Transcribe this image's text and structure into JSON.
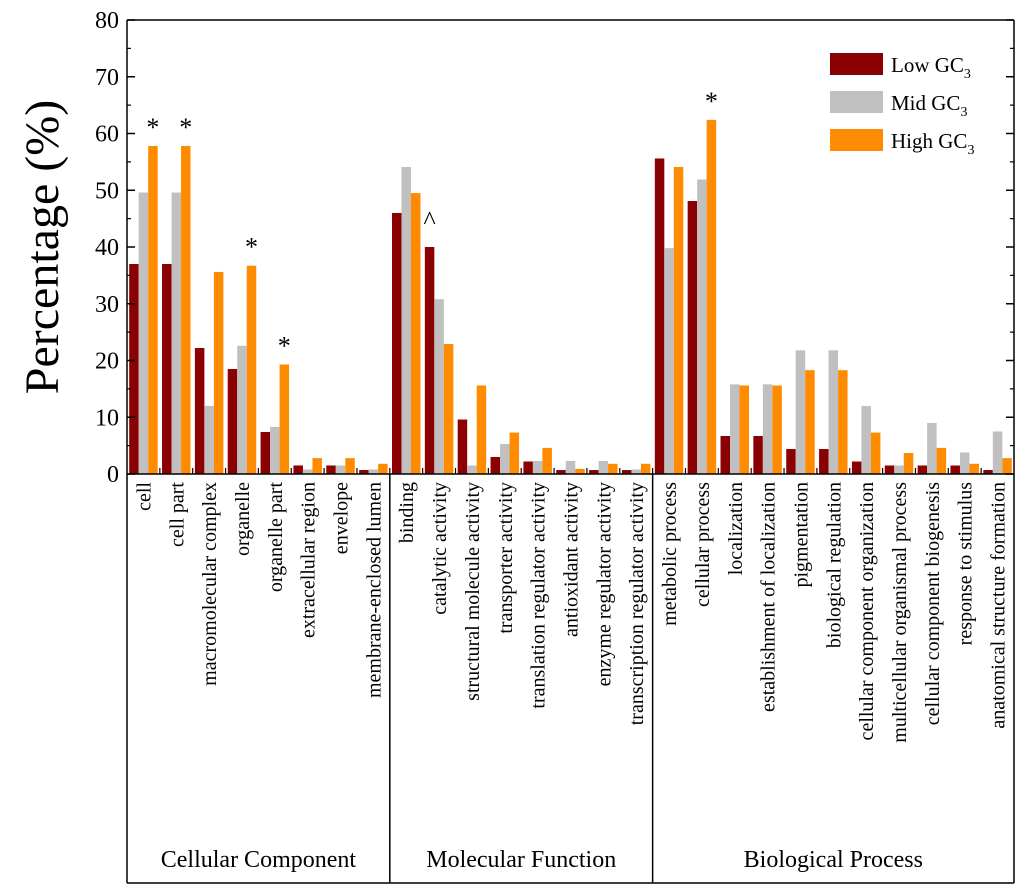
{
  "chart_data": {
    "type": "bar",
    "ylabel": "Percentage (%)",
    "ylim": [
      0,
      80
    ],
    "yticks": [
      0,
      10,
      20,
      30,
      40,
      50,
      60,
      70,
      80
    ],
    "categories": [
      "cell",
      "cell part",
      "macromolecular complex",
      "organelle",
      "organelle part",
      "extracellular region",
      "envelope",
      "membrane-enclosed lumen",
      "binding",
      "catalytic activity",
      "structural molecule activity",
      "transporter activity",
      "translation regulator activity",
      "antioxidant activity",
      "enzyme regulator activity",
      "transcription regulator activity",
      "metabolic process",
      "cellular process",
      "localization",
      "establishment of localization",
      "pigmentation",
      "biological regulation",
      "cellular component organization",
      "multicellular organismal process",
      "cellular component biogenesis",
      "response to stimulus",
      "anatomical structure formation"
    ],
    "groups": [
      {
        "label": "Cellular Component",
        "start": 0,
        "end": 7
      },
      {
        "label": "Molecular Function",
        "start": 8,
        "end": 15
      },
      {
        "label": "Biological Process",
        "start": 16,
        "end": 26
      }
    ],
    "series": [
      {
        "name": "Low GC",
        "subscript": "3",
        "color": "#8b0000",
        "values": [
          37,
          37,
          22.2,
          18.5,
          7.4,
          1.5,
          1.5,
          0.7,
          46,
          40,
          9.6,
          3,
          2.2,
          0.7,
          0.7,
          0.7,
          55.6,
          48.1,
          6.7,
          6.7,
          4.4,
          4.4,
          2.2,
          1.5,
          1.5,
          1.5,
          0.7
        ]
      },
      {
        "name": "Mid GC",
        "subscript": "3",
        "color": "#c0c0c0",
        "values": [
          49.6,
          49.6,
          12,
          22.6,
          8.3,
          0.8,
          1.5,
          0.8,
          54.1,
          30.8,
          1.5,
          5.3,
          2.3,
          2.3,
          2.3,
          0.8,
          39.8,
          51.9,
          15.8,
          15.8,
          21.8,
          21.8,
          12,
          1.5,
          9,
          3.8,
          7.5
        ]
      },
      {
        "name": "High GC",
        "subscript": "3",
        "color": "#ff8c00",
        "values": [
          57.8,
          57.8,
          35.6,
          36.7,
          19.3,
          2.8,
          2.8,
          1.8,
          49.5,
          22.9,
          15.6,
          7.3,
          4.6,
          0.9,
          1.8,
          1.8,
          54.1,
          62.4,
          15.6,
          15.6,
          18.3,
          18.3,
          7.3,
          3.7,
          4.6,
          1.8,
          2.8
        ]
      }
    ],
    "annotations": [
      {
        "text": "*",
        "category": 0
      },
      {
        "text": "*",
        "category": 1
      },
      {
        "text": "*",
        "category": 3
      },
      {
        "text": "*",
        "category": 4
      },
      {
        "text": "^",
        "category": 9
      },
      {
        "text": "*",
        "category": 17
      }
    ],
    "legend_position": "top-right",
    "grid": false
  }
}
